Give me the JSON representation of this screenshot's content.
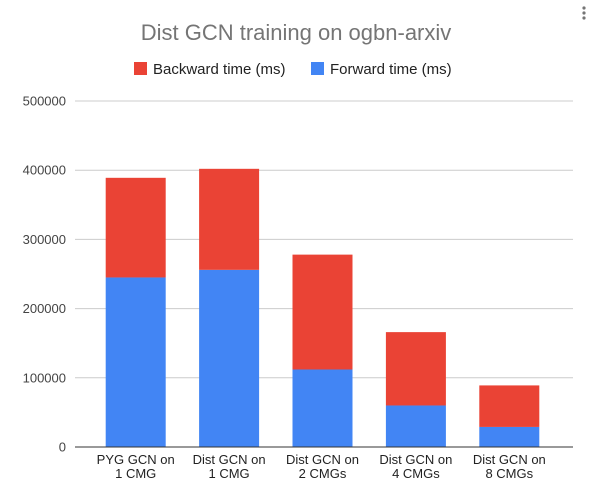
{
  "chart_data": {
    "type": "bar",
    "stacked": true,
    "title": "Dist GCN training on ogbn-arxiv",
    "xlabel": "",
    "ylabel": "",
    "categories": [
      [
        "PYG GCN on",
        "1 CMG"
      ],
      [
        "Dist GCN on",
        "1 CMG"
      ],
      [
        "Dist GCN on",
        "2 CMGs"
      ],
      [
        "Dist GCN on",
        "4 CMGs"
      ],
      [
        "Dist GCN on",
        "8 CMGs"
      ]
    ],
    "series": [
      {
        "name": "Forward time (ms)",
        "color": "#4285f4",
        "values": [
          245000,
          256000,
          112000,
          60000,
          29000
        ]
      },
      {
        "name": "Backward time (ms)",
        "color": "#ea4335",
        "values": [
          144000,
          146000,
          166000,
          106000,
          60000
        ]
      }
    ],
    "legend_order": [
      1,
      0
    ],
    "legend_position": "top",
    "ylim": [
      0,
      500000
    ],
    "yticks": [
      0,
      100000,
      200000,
      300000,
      400000,
      500000
    ],
    "ytick_labels": [
      "0",
      "100000",
      "200000",
      "300000",
      "400000",
      "500000"
    ],
    "grid": true
  },
  "menu": {
    "icon": "vertical-dots-icon"
  }
}
